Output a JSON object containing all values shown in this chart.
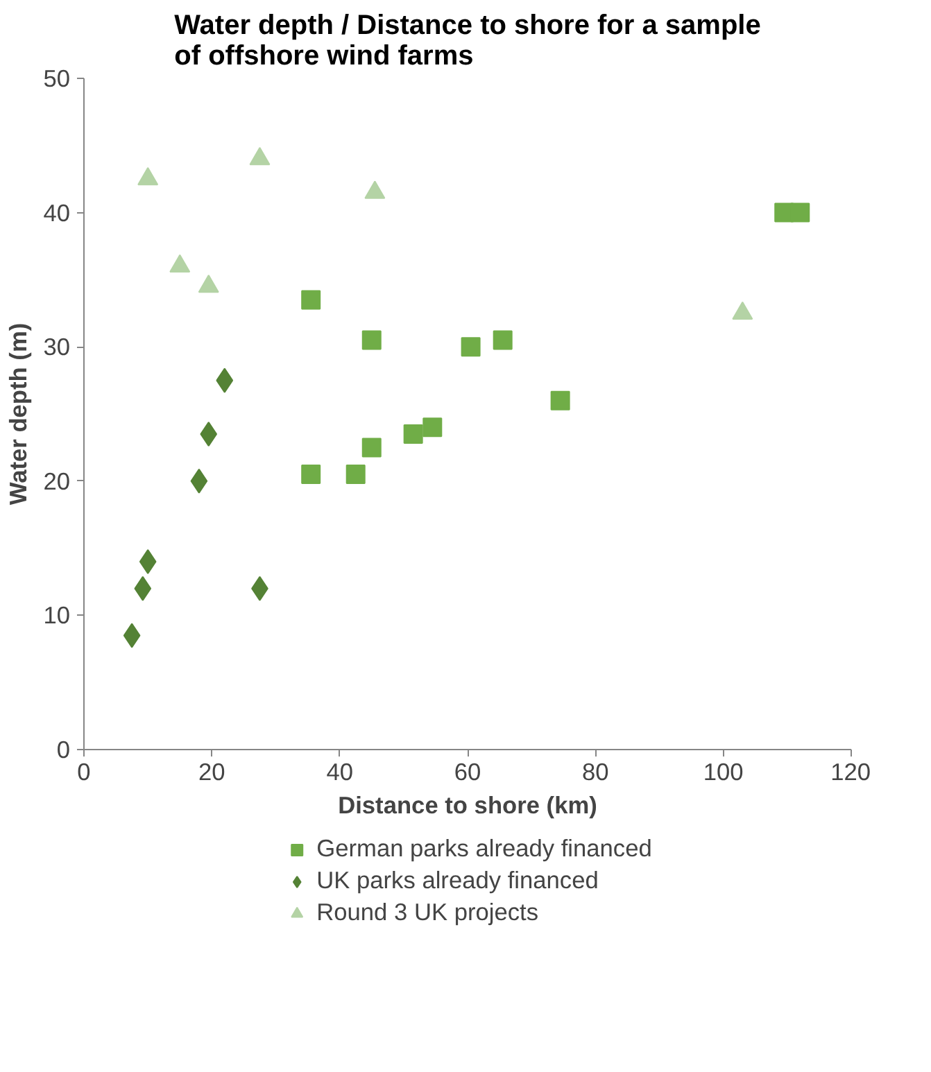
{
  "chart_data": {
    "type": "scatter",
    "title": "Water depth / Distance to shore for a sample of offshore wind farms",
    "xlabel": "Distance to shore (km)",
    "ylabel": "Water depth (m)",
    "xlim": [
      0,
      120
    ],
    "xticks": [
      0,
      20,
      40,
      60,
      80,
      100,
      120
    ],
    "ylim": [
      0,
      50
    ],
    "yticks": [
      0,
      10,
      20,
      30,
      40,
      50
    ],
    "grid": false,
    "legend": "bottom",
    "series": [
      {
        "name": "German parks already financed",
        "color": "#70ad47",
        "marker": "square",
        "x": [
          35.5,
          45,
          60.5,
          65.5,
          74.5,
          35.5,
          42.5,
          45,
          51.5,
          54.5,
          109.5,
          112
        ],
        "values": [
          33.5,
          30.5,
          30,
          30.5,
          26,
          20.5,
          20.5,
          22.5,
          23.5,
          24,
          40,
          40
        ]
      },
      {
        "name": "UK parks already financed",
        "color": "#548235",
        "marker": "diamond",
        "x": [
          7.5,
          9.2,
          10,
          18,
          19.5,
          22,
          27.5
        ],
        "values": [
          8.5,
          12,
          14,
          20,
          23.5,
          27.5,
          12
        ]
      },
      {
        "name": "Round 3 UK projects",
        "color": "#b4d3a5",
        "marker": "triangle",
        "x": [
          10,
          27.5,
          45.5,
          15,
          19.5,
          103
        ],
        "values": [
          42.5,
          44,
          41.5,
          36,
          34.5,
          32.5
        ]
      }
    ]
  }
}
